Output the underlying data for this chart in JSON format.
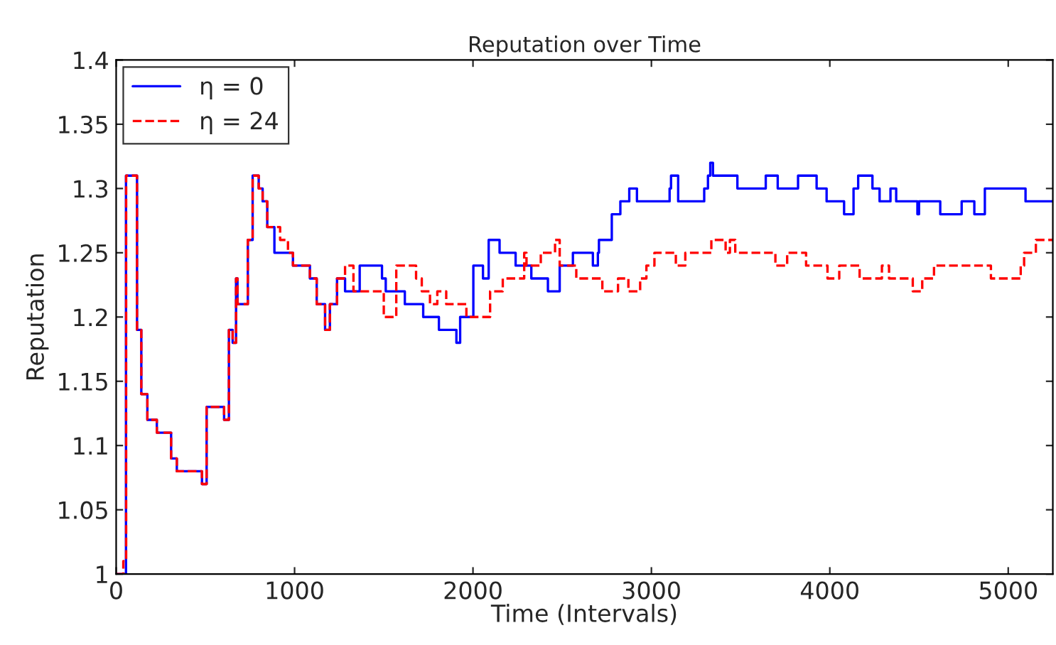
{
  "chart_data": {
    "type": "step",
    "title": "Reputation over Time",
    "xlabel": "Time (Intervals)",
    "ylabel": "Reputation",
    "xlim": [
      0,
      5250
    ],
    "xticks": [
      0,
      1000,
      2000,
      3000,
      4000,
      5000
    ],
    "ylim": [
      1,
      1.4
    ],
    "yticks": [
      1,
      1.05,
      1.1,
      1.15,
      1.2,
      1.25,
      1.3,
      1.35,
      1.4
    ],
    "grid": false,
    "legend": "top left",
    "series": [
      {
        "name": "η = 0",
        "color": "#0000ff",
        "line_style": "solid",
        "x": [
          0,
          55,
          117,
          141,
          175,
          228,
          308,
          340,
          481,
          507,
          605,
          632,
          653,
          672,
          680,
          738,
          765,
          799,
          821,
          847,
          887,
          991,
          1086,
          1124,
          1171,
          1198,
          1238,
          1283,
          1365,
          1490,
          1511,
          1618,
          1721,
          1809,
          1907,
          1928,
          2002,
          2056,
          2088,
          2149,
          2239,
          2327,
          2420,
          2486,
          2560,
          2672,
          2700,
          2706,
          2778,
          2826,
          2876,
          2919,
          3102,
          3110,
          3150,
          3296,
          3317,
          3330,
          3345,
          3482,
          3641,
          3708,
          3822,
          3926,
          3982,
          4080,
          4133,
          4159,
          4239,
          4279,
          4340,
          4372,
          4491,
          4500,
          4619,
          4739,
          4810,
          4869,
          5097,
          5250
        ],
        "values": [
          1.0,
          1.31,
          1.19,
          1.14,
          1.12,
          1.11,
          1.09,
          1.08,
          1.07,
          1.13,
          1.12,
          1.19,
          1.18,
          1.23,
          1.21,
          1.26,
          1.31,
          1.3,
          1.29,
          1.27,
          1.25,
          1.24,
          1.23,
          1.21,
          1.19,
          1.21,
          1.23,
          1.22,
          1.24,
          1.23,
          1.22,
          1.21,
          1.2,
          1.19,
          1.18,
          1.2,
          1.24,
          1.23,
          1.26,
          1.25,
          1.24,
          1.23,
          1.22,
          1.24,
          1.25,
          1.24,
          1.25,
          1.26,
          1.28,
          1.29,
          1.3,
          1.29,
          1.3,
          1.31,
          1.29,
          1.3,
          1.31,
          1.32,
          1.31,
          1.3,
          1.31,
          1.3,
          1.31,
          1.3,
          1.29,
          1.28,
          1.3,
          1.31,
          1.3,
          1.29,
          1.3,
          1.29,
          1.28,
          1.29,
          1.28,
          1.29,
          1.28,
          1.3,
          1.29,
          1.29
        ]
      },
      {
        "name": "η = 24",
        "color": "#ff0000",
        "line_style": "dashed",
        "x": [
          0,
          40,
          56,
          117,
          141,
          175,
          228,
          308,
          340,
          481,
          507,
          605,
          632,
          653,
          672,
          680,
          738,
          765,
          799,
          821,
          847,
          919,
          963,
          991,
          1086,
          1124,
          1171,
          1198,
          1238,
          1283,
          1330,
          1500,
          1570,
          1681,
          1713,
          1759,
          1800,
          1850,
          1963,
          2096,
          2167,
          2287,
          2300,
          2380,
          2460,
          2486,
          2579,
          2725,
          2813,
          2871,
          2937,
          2972,
          3017,
          3137,
          3190,
          3216,
          3336,
          3416,
          3440,
          3470,
          3695,
          3761,
          3867,
          3987,
          4053,
          4167,
          4292,
          4332,
          4465,
          4518,
          4584,
          4903,
          5070,
          5089,
          5155,
          5250
        ],
        "values": [
          1.0,
          1.01,
          1.31,
          1.19,
          1.14,
          1.12,
          1.11,
          1.09,
          1.08,
          1.07,
          1.13,
          1.12,
          1.19,
          1.18,
          1.23,
          1.21,
          1.26,
          1.31,
          1.3,
          1.29,
          1.27,
          1.26,
          1.25,
          1.24,
          1.23,
          1.21,
          1.19,
          1.21,
          1.23,
          1.24,
          1.22,
          1.2,
          1.24,
          1.23,
          1.22,
          1.21,
          1.22,
          1.21,
          1.2,
          1.22,
          1.23,
          1.25,
          1.24,
          1.25,
          1.26,
          1.24,
          1.23,
          1.22,
          1.23,
          1.22,
          1.23,
          1.24,
          1.25,
          1.24,
          1.25,
          1.25,
          1.26,
          1.25,
          1.26,
          1.25,
          1.24,
          1.25,
          1.24,
          1.23,
          1.24,
          1.23,
          1.24,
          1.23,
          1.22,
          1.23,
          1.24,
          1.23,
          1.24,
          1.25,
          1.26,
          1.26
        ]
      }
    ]
  }
}
